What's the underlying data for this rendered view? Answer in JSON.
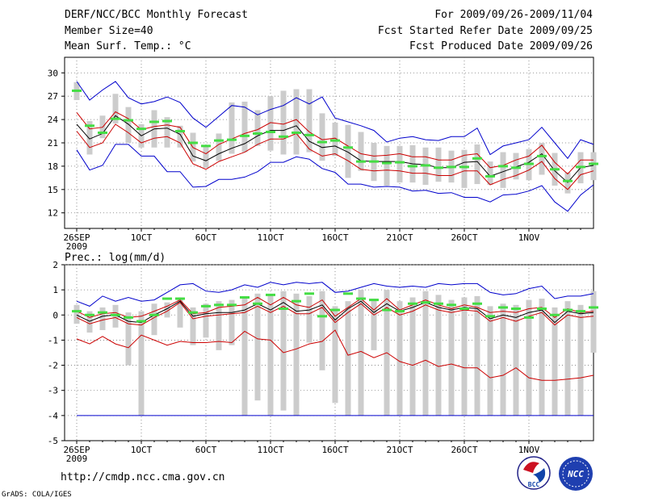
{
  "header": {
    "title": "DERF/NCC/BCC Monthly Forecast",
    "member_size": "Member Size=40",
    "variable": "Mean Surf. Temp.: °C",
    "period": "For 2009/09/26-2009/11/04",
    "start_date": "Fcst Started Refer Date 2009/09/25",
    "produced_date": "Fcst Produced Date 2009/09/26"
  },
  "footer": {
    "url": "http://cmdp.ncc.cma.gov.cn",
    "credit": "GrADS: COLA/IGES",
    "logo_bcc_text": "BCC",
    "logo_ncc_text": "NCC"
  },
  "colors": {
    "envelope": "#0000cc",
    "spread": "#cc0000",
    "mean": "#000000",
    "box": "#cccccc",
    "marker": "#44dd44",
    "grid": "#777777"
  },
  "chart_data": [
    {
      "type": "line",
      "title": "Mean Surf. Temp.: °C",
      "x_ticks": [
        "26SEP",
        "1OCT",
        "6OCT",
        "11OCT",
        "16OCT",
        "21OCT",
        "26OCT",
        "1NOV"
      ],
      "x_year": "2009",
      "days": 40,
      "ylim": [
        10,
        32
      ],
      "y_ticks": [
        12,
        15,
        18,
        21,
        24,
        27,
        30
      ],
      "series": [
        {
          "name": "max",
          "values": [
            28.9,
            26.5,
            27.8,
            28.9,
            26.8,
            26.0,
            26.3,
            26.9,
            26.2,
            24.2,
            23.0,
            24.4,
            25.8,
            25.6,
            24.6,
            25.3,
            25.8,
            26.8,
            26.0,
            26.9,
            24.2,
            23.7,
            23.2,
            22.6,
            21.1,
            21.6,
            21.8,
            21.4,
            21.3,
            21.8,
            21.8,
            22.9,
            19.5,
            20.6,
            21.0,
            21.4,
            23.0,
            21.0,
            19.0,
            21.4,
            20.8
          ]
        },
        {
          "name": "upper",
          "values": [
            24.9,
            22.8,
            23.0,
            25.0,
            24.1,
            22.7,
            23.1,
            23.3,
            23.0,
            20.4,
            19.6,
            20.8,
            21.5,
            22.2,
            22.7,
            23.6,
            23.4,
            24.0,
            22.4,
            21.4,
            21.6,
            20.6,
            19.6,
            19.3,
            19.4,
            19.6,
            19.2,
            19.2,
            18.8,
            18.8,
            19.4,
            19.6,
            17.8,
            18.1,
            18.8,
            19.3,
            20.7,
            18.5,
            17.0,
            18.8,
            18.8
          ]
        },
        {
          "name": "mean",
          "values": [
            23.4,
            21.5,
            22.2,
            24.5,
            23.4,
            21.9,
            22.8,
            22.9,
            22.1,
            19.3,
            18.7,
            19.6,
            20.3,
            20.9,
            21.9,
            22.6,
            22.6,
            23.2,
            21.2,
            20.4,
            20.6,
            19.8,
            18.7,
            18.6,
            18.6,
            18.6,
            18.3,
            18.2,
            17.8,
            17.8,
            18.5,
            18.6,
            16.7,
            17.3,
            17.9,
            18.5,
            19.6,
            17.4,
            15.9,
            17.8,
            18.1
          ]
        },
        {
          "name": "lower",
          "values": [
            22.5,
            20.4,
            21.0,
            23.4,
            22.3,
            21.0,
            21.6,
            21.8,
            21.0,
            18.3,
            17.6,
            18.6,
            19.2,
            19.8,
            20.8,
            21.5,
            21.5,
            22.2,
            20.2,
            19.3,
            19.6,
            18.7,
            17.6,
            17.4,
            17.5,
            17.4,
            17.1,
            17.1,
            16.8,
            16.8,
            17.4,
            17.4,
            15.6,
            16.3,
            16.8,
            17.5,
            18.6,
            16.4,
            15.0,
            16.9,
            17.4
          ]
        },
        {
          "name": "min",
          "values": [
            20.1,
            17.5,
            18.1,
            20.8,
            20.8,
            19.3,
            19.3,
            17.3,
            17.3,
            15.3,
            15.4,
            16.3,
            16.3,
            16.6,
            17.3,
            18.5,
            18.5,
            19.2,
            18.9,
            17.7,
            17.2,
            15.7,
            15.7,
            15.3,
            15.4,
            15.3,
            14.8,
            14.9,
            14.5,
            14.6,
            14.0,
            14.0,
            13.4,
            14.3,
            14.4,
            14.8,
            15.5,
            13.4,
            12.2,
            14.3,
            15.6
          ]
        },
        {
          "name": "box_top",
          "values": [
            28.8,
            23.8,
            24.5,
            27.3,
            25.6,
            23.4,
            25.2,
            24.3,
            23.2,
            22.3,
            20.5,
            22.2,
            26.2,
            26.3,
            25.2,
            27.0,
            27.7,
            27.9,
            27.9,
            24.8,
            23.6,
            23.3,
            22.4,
            21.0,
            20.6,
            20.6,
            20.7,
            20.4,
            20.4,
            20.0,
            20.1,
            20.8,
            18.6,
            19.8,
            19.7,
            20.2,
            21.0,
            19.7,
            17.2,
            19.8,
            19.8
          ]
        },
        {
          "name": "box_bottom",
          "values": [
            26.5,
            19.5,
            21.6,
            23.5,
            21.0,
            20.4,
            20.4,
            20.4,
            20.4,
            18.6,
            17.8,
            18.7,
            19.6,
            19.8,
            20.6,
            20.0,
            19.5,
            19.5,
            19.8,
            18.7,
            19.3,
            16.5,
            17.4,
            16.1,
            15.5,
            15.9,
            15.9,
            15.6,
            16.0,
            15.9,
            15.2,
            15.7,
            15.6,
            15.2,
            16.3,
            16.2,
            16.9,
            15.5,
            14.5,
            15.8,
            16.2
          ]
        },
        {
          "name": "obs_markers",
          "values": [
            27.7,
            23.2,
            22.3,
            24.1,
            23.9,
            22.8,
            23.7,
            23.8,
            22.5,
            21.0,
            20.6,
            21.3,
            21.4,
            21.9,
            22.2,
            22.4,
            21.8,
            22.3,
            22.0,
            21.1,
            21.3,
            20.4,
            18.6,
            18.6,
            18.4,
            18.5,
            18.0,
            18.1,
            17.8,
            17.9,
            17.9,
            19.0,
            16.7,
            18.0,
            17.8,
            18.3,
            19.3,
            17.6,
            16.1,
            17.9,
            18.3
          ]
        }
      ]
    },
    {
      "type": "line",
      "title": "Prec.: log(mm/d)",
      "x_ticks": [
        "26SEP",
        "1OCT",
        "6OCT",
        "11OCT",
        "16OCT",
        "21OCT",
        "26OCT",
        "1NOV"
      ],
      "x_year": "2009",
      "days": 40,
      "ylim": [
        -5,
        2
      ],
      "y_ticks": [
        -5,
        -4,
        -3,
        -2,
        -1,
        0,
        1,
        2
      ],
      "series": [
        {
          "name": "max",
          "values": [
            0.55,
            0.35,
            0.75,
            0.55,
            0.7,
            0.55,
            0.6,
            0.9,
            1.2,
            1.25,
            0.95,
            0.9,
            1.0,
            1.2,
            1.1,
            1.3,
            1.2,
            1.3,
            1.25,
            1.3,
            0.9,
            0.95,
            1.1,
            1.25,
            1.15,
            1.1,
            1.15,
            1.1,
            1.25,
            1.2,
            1.25,
            1.25,
            0.9,
            0.8,
            0.85,
            1.05,
            1.15,
            0.65,
            0.75,
            0.75,
            0.85
          ]
        },
        {
          "name": "upper",
          "values": [
            0.15,
            -0.1,
            0.05,
            0.1,
            -0.1,
            -0.05,
            0.15,
            0.35,
            0.6,
            0.05,
            0.1,
            0.3,
            0.35,
            0.4,
            0.7,
            0.4,
            0.7,
            0.4,
            0.3,
            0.6,
            -0.05,
            0.3,
            0.65,
            0.2,
            0.65,
            0.2,
            0.4,
            0.6,
            0.4,
            0.25,
            0.4,
            0.3,
            0.1,
            0.15,
            0.1,
            0.25,
            0.3,
            -0.1,
            0.25,
            0.1,
            0.15
          ]
        },
        {
          "name": "mean",
          "values": [
            0.0,
            -0.25,
            -0.05,
            0.0,
            -0.25,
            -0.3,
            0.0,
            0.25,
            0.55,
            -0.05,
            0.05,
            0.1,
            0.1,
            0.2,
            0.45,
            0.2,
            0.5,
            0.15,
            0.2,
            0.4,
            -0.2,
            0.25,
            0.55,
            0.1,
            0.45,
            0.15,
            0.3,
            0.5,
            0.3,
            0.2,
            0.3,
            0.25,
            -0.15,
            0.0,
            -0.1,
            0.1,
            0.2,
            -0.3,
            0.15,
            0.05,
            0.1
          ]
        },
        {
          "name": "lower",
          "values": [
            -0.1,
            -0.35,
            -0.2,
            -0.1,
            -0.35,
            -0.4,
            -0.1,
            0.15,
            0.5,
            -0.15,
            -0.05,
            0.0,
            0.05,
            0.1,
            0.35,
            0.1,
            0.35,
            0.05,
            0.05,
            0.3,
            -0.3,
            0.1,
            0.45,
            0.0,
            0.3,
            0.0,
            0.15,
            0.4,
            0.2,
            0.1,
            0.2,
            0.15,
            -0.25,
            -0.1,
            -0.25,
            -0.05,
            0.1,
            -0.4,
            0.0,
            -0.1,
            -0.05
          ]
        },
        {
          "name": "min_spread",
          "values": [
            -0.95,
            -1.15,
            -0.85,
            -1.15,
            -1.3,
            -0.8,
            -1.0,
            -1.2,
            -1.05,
            -1.1,
            -1.1,
            -1.05,
            -1.1,
            -0.65,
            -0.95,
            -1.0,
            -1.5,
            -1.35,
            -1.15,
            -1.05,
            -0.6,
            -1.6,
            -1.45,
            -1.7,
            -1.5,
            -1.85,
            -2.0,
            -1.8,
            -2.05,
            -1.95,
            -2.1,
            -2.1,
            -2.5,
            -2.4,
            -2.1,
            -2.5,
            -2.6,
            -2.6,
            -2.55,
            -2.5,
            -2.4
          ]
        },
        {
          "name": "floor",
          "values": [
            -4.0,
            -4.0,
            -4.0,
            -4.0,
            -4.0,
            -4.0,
            -4.0,
            -4.0,
            -4.0,
            -4.0,
            -4.0,
            -4.0,
            -4.0,
            -4.0,
            -4.0,
            -4.0,
            -4.0,
            -4.0,
            -4.0,
            -4.0,
            -4.0,
            -4.0,
            -4.0,
            -4.0,
            -4.0,
            -4.0,
            -4.0,
            -4.0,
            -4.0,
            -4.0,
            -4.0,
            -4.0,
            -4.0,
            -4.0,
            -4.0,
            -4.0,
            -4.0,
            -4.0,
            -4.0,
            -4.0,
            -4.0
          ]
        },
        {
          "name": "box_top",
          "values": [
            0.4,
            0.15,
            0.3,
            0.4,
            0.1,
            0.15,
            0.45,
            0.5,
            0.7,
            0.3,
            0.45,
            0.55,
            0.6,
            0.75,
            0.85,
            0.8,
            0.95,
            0.85,
            0.75,
            0.95,
            0.35,
            0.55,
            1.0,
            0.65,
            1.0,
            0.55,
            0.7,
            0.95,
            0.8,
            0.6,
            0.7,
            0.75,
            0.35,
            0.45,
            0.4,
            0.6,
            0.65,
            0.3,
            0.55,
            0.4,
            0.95
          ]
        },
        {
          "name": "box_bottom",
          "values": [
            -0.35,
            -0.7,
            -0.6,
            -0.5,
            -2.0,
            -4.0,
            -0.8,
            -0.1,
            -0.5,
            -1.2,
            -0.9,
            -1.4,
            -1.2,
            -4.0,
            -3.4,
            -4.0,
            -3.8,
            -4.0,
            -1.1,
            -2.2,
            -3.5,
            -4.0,
            -4.0,
            -1.4,
            -4.0,
            -4.0,
            -4.0,
            -4.0,
            -4.0,
            -4.0,
            -4.0,
            -4.0,
            -4.0,
            -4.0,
            -4.0,
            -4.0,
            -4.0,
            -4.0,
            -4.0,
            -4.0,
            -1.5
          ]
        },
        {
          "name": "obs_markers",
          "values": [
            0.15,
            0.0,
            0.1,
            0.0,
            -0.1,
            -0.25,
            0.0,
            0.65,
            0.65,
            0.1,
            0.35,
            0.4,
            0.4,
            0.7,
            0.45,
            0.8,
            0.25,
            0.55,
            0.85,
            -0.05,
            0.2,
            0.85,
            0.65,
            0.6,
            0.2,
            0.15,
            0.45,
            0.5,
            0.45,
            0.4,
            0.25,
            0.45,
            -0.05,
            0.3,
            0.25,
            -0.1,
            0.25,
            0.0,
            0.2,
            0.15,
            0.3
          ]
        }
      ]
    }
  ]
}
